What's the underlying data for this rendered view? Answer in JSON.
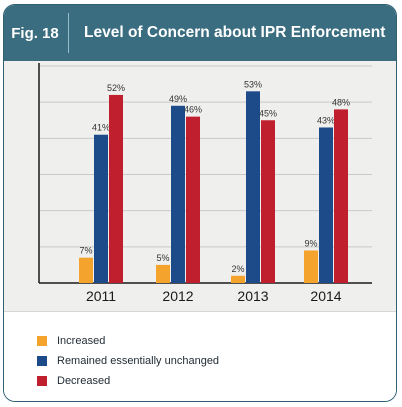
{
  "header": {
    "fig_label": "Fig. 18",
    "title": "Level of Concern about IPR Enforcement"
  },
  "colors": {
    "header_bg": "#3b6d80",
    "increased": "#f4a42c",
    "remained": "#1d4b8a",
    "decreased": "#c0202e"
  },
  "chart_data": {
    "type": "bar",
    "categories": [
      "2011",
      "2012",
      "2013",
      "2014"
    ],
    "series": [
      {
        "name": "Increased",
        "values": [
          7,
          5,
          2,
          9
        ],
        "labels": [
          "7%",
          "5%",
          "2%",
          "9%"
        ]
      },
      {
        "name": "Remained essentially unchanged",
        "values": [
          41,
          49,
          53,
          43
        ],
        "labels": [
          "41%",
          "49%",
          "53%",
          "43%"
        ]
      },
      {
        "name": "Decreased",
        "values": [
          52,
          46,
          45,
          48
        ],
        "labels": [
          "52%",
          "46%",
          "45%",
          "48%"
        ]
      }
    ],
    "ylim": [
      0,
      60
    ],
    "grid": true,
    "legend_position": "bottom"
  }
}
